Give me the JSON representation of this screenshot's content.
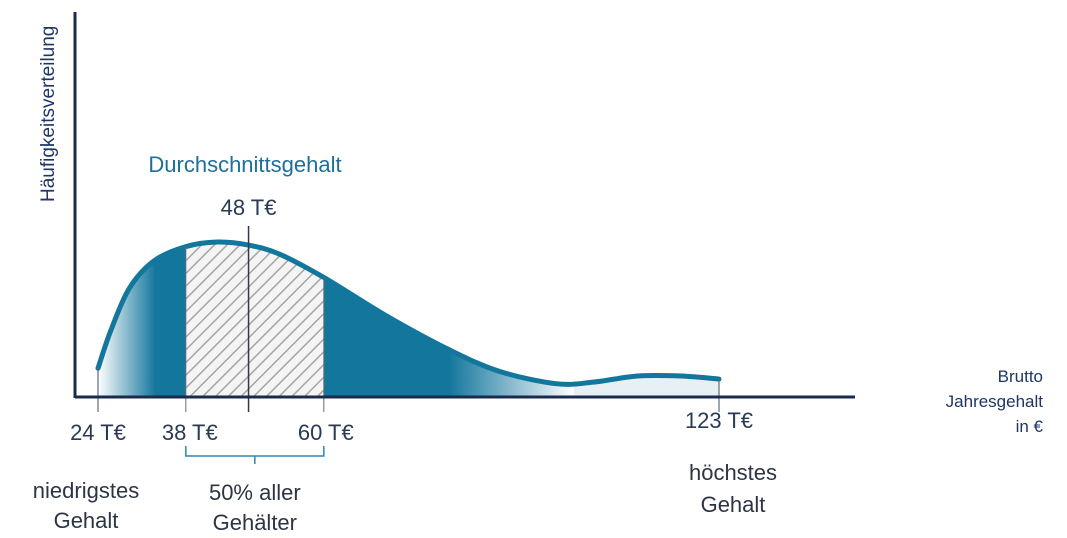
{
  "chart_data": {
    "type": "area",
    "title": "",
    "ylabel": "Häufigkeitsverteilung",
    "xlabel_lines": [
      "Brutto",
      "Jahresgehalt",
      "in €"
    ],
    "xlim": [
      24,
      123
    ],
    "ticks": [
      {
        "label": "24 T€",
        "value": 24
      },
      {
        "label": "38 T€",
        "value": 38
      },
      {
        "label": "60 T€",
        "value": 60
      },
      {
        "label": "123 T€",
        "value": 123
      }
    ],
    "curve": {
      "x": [
        24,
        26,
        29,
        33,
        38,
        43,
        48,
        53,
        60,
        70,
        80,
        88,
        97,
        103,
        110,
        117,
        123
      ],
      "y": [
        0.18,
        0.42,
        0.7,
        0.88,
        0.97,
        1.0,
        0.98,
        0.92,
        0.77,
        0.52,
        0.3,
        0.16,
        0.08,
        0.09,
        0.13,
        0.13,
        0.11
      ]
    },
    "average": {
      "title": "Durchschnittsgehalt",
      "label": "48 T€",
      "value": 48
    },
    "band": {
      "from": 38,
      "to": 60,
      "label_lines": [
        "50% aller",
        "Gehälter"
      ]
    },
    "annotations": {
      "lowest_lines": [
        "niedrigstes",
        "Gehalt"
      ],
      "highest_lines": [
        "höchstes",
        "Gehalt"
      ]
    },
    "colors": {
      "fill": "#12769d",
      "axis": "#1b2b4d",
      "hatch": "#9a9a9a",
      "bracket": "#2f86b4"
    }
  }
}
